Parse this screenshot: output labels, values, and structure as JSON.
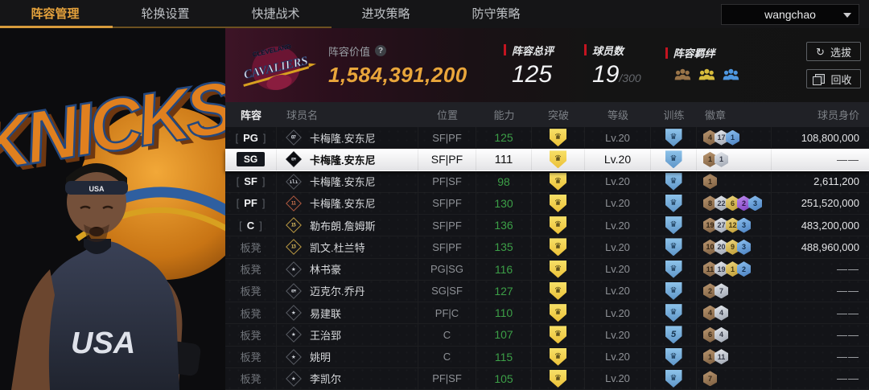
{
  "colors": {
    "accent_gold": "#e9a63b",
    "accent_red": "#c41420",
    "tab_active": "#e5a23c",
    "bond_bronze": "#9a7448",
    "bond_gold": "#d8bc3c",
    "bond_blue": "#4e97e0"
  },
  "nav": {
    "tabs": [
      "阵容管理",
      "轮换设置",
      "快捷战术",
      "进攻策略",
      "防守策略"
    ],
    "active_index": 0,
    "user": "wangchao"
  },
  "art": {
    "knicks": "KNICKS",
    "headband": "USA",
    "jersey": "USA"
  },
  "header": {
    "team": {
      "line1": "CLEVELAND",
      "line2": "CAVALIERS"
    },
    "value_label": "阵容价值",
    "value_help": "?",
    "value": "1,584,391,200",
    "stats": [
      {
        "label": "阵容总评",
        "value": "125"
      },
      {
        "label": "球员数",
        "value": "19",
        "suffix": "/300"
      },
      {
        "label": "阵容羁绊"
      }
    ],
    "bonds": [
      {
        "icon": "bond-group-bronze-icon",
        "color": "#9a7448"
      },
      {
        "icon": "bond-group-gold-icon",
        "color": "#d8bc3c"
      },
      {
        "icon": "bond-group-blue-icon",
        "color": "#4e97e0"
      }
    ],
    "buttons": [
      {
        "label": "选拔",
        "icon": "refresh-icon"
      },
      {
        "label": "回收",
        "icon": "recycle-icon"
      }
    ]
  },
  "table": {
    "columns": [
      "阵容",
      "球员名",
      "位置",
      "能力",
      "突破",
      "等级",
      "训练",
      "徽章",
      "球员身价"
    ],
    "rows": [
      {
        "slot": "PG",
        "slot_style": "bracket",
        "selected": false,
        "icon_style": "number-gray-icon",
        "icon_text": "07",
        "name": "卡梅隆.安东尼",
        "pos": "SF|PF",
        "ability": "125",
        "breakthrough": "crown",
        "level": "Lv.20",
        "training": "crown",
        "badges": [
          [
            "bronze",
            "4"
          ],
          [
            "silver",
            "17"
          ],
          [
            "blue",
            "1"
          ]
        ],
        "price": "108,800,000"
      },
      {
        "slot": "SG",
        "slot_style": "solid",
        "selected": true,
        "icon_style": "copy-icon",
        "icon_text": "COPY",
        "name": "卡梅隆.安东尼",
        "pos": "SF|PF",
        "ability": "111",
        "breakthrough": "crown",
        "level": "Lv.20",
        "training": "crown",
        "badges": [
          [
            "bronze",
            "1"
          ],
          [
            "silver",
            "1"
          ]
        ],
        "price": "——"
      },
      {
        "slot": "SF",
        "slot_style": "bracket",
        "selected": false,
        "icon_style": "bars-icon",
        "icon_text": "ılı",
        "name": "卡梅隆.安东尼",
        "pos": "PF|SF",
        "ability": "98",
        "breakthrough": "crown",
        "level": "Lv.20",
        "training": "crown",
        "badges": [
          [
            "bronze",
            "1"
          ]
        ],
        "price": "2,611,200"
      },
      {
        "slot": "PF",
        "slot_style": "bracket",
        "selected": false,
        "icon_style": "number-red-icon",
        "icon_text": "11",
        "name": "卡梅隆.安东尼",
        "pos": "SF|PF",
        "ability": "130",
        "breakthrough": "crown",
        "level": "Lv.20",
        "training": "crown",
        "badges": [
          [
            "bronze",
            "8"
          ],
          [
            "silver",
            "22"
          ],
          [
            "gold",
            "6"
          ],
          [
            "purple",
            "2"
          ],
          [
            "blue",
            "3"
          ]
        ],
        "price": "251,520,000"
      },
      {
        "slot": "C",
        "slot_style": "bracket",
        "selected": false,
        "icon_style": "number-gold-icon",
        "icon_text": "15",
        "name": "勒布朗.詹姆斯",
        "pos": "SF|PF",
        "ability": "136",
        "breakthrough": "crown",
        "level": "Lv.20",
        "training": "crown",
        "badges": [
          [
            "bronze",
            "19"
          ],
          [
            "silver",
            "27"
          ],
          [
            "gold",
            "12"
          ],
          [
            "blue",
            "3"
          ]
        ],
        "price": "483,200,000"
      },
      {
        "slot": "板凳",
        "slot_style": "bench",
        "selected": false,
        "icon_style": "number-gold-icon",
        "icon_text": "13",
        "name": "凯文.杜兰特",
        "pos": "SF|PF",
        "ability": "135",
        "breakthrough": "crown",
        "level": "Lv.20",
        "training": "crown",
        "badges": [
          [
            "bronze",
            "10"
          ],
          [
            "silver",
            "20"
          ],
          [
            "gold",
            "9"
          ],
          [
            "blue",
            "3"
          ]
        ],
        "price": "488,960,000"
      },
      {
        "slot": "板凳",
        "slot_style": "bench",
        "selected": false,
        "icon_style": "star-icon",
        "icon_text": "★",
        "name": "林书豪",
        "pos": "PG|SG",
        "ability": "116",
        "breakthrough": "crown",
        "level": "Lv.20",
        "training": "crown",
        "badges": [
          [
            "bronze",
            "11"
          ],
          [
            "silver",
            "19"
          ],
          [
            "gold",
            "1"
          ],
          [
            "blue",
            "2"
          ]
        ],
        "price": "——"
      },
      {
        "slot": "板凳",
        "slot_style": "bench",
        "selected": false,
        "icon_style": "copy-icon",
        "icon_text": "COPY",
        "name": "迈克尔.乔丹",
        "pos": "SG|SF",
        "ability": "127",
        "breakthrough": "crown",
        "level": "Lv.20",
        "training": "crown",
        "badges": [
          [
            "bronze",
            "2"
          ],
          [
            "silver",
            "7"
          ]
        ],
        "price": "——"
      },
      {
        "slot": "板凳",
        "slot_style": "bench",
        "selected": false,
        "icon_style": "star-icon",
        "icon_text": "★",
        "name": "易建联",
        "pos": "PF|C",
        "ability": "110",
        "breakthrough": "crown",
        "level": "Lv.20",
        "training": "crown",
        "badges": [
          [
            "bronze",
            "4"
          ],
          [
            "silver",
            "4"
          ]
        ],
        "price": "——"
      },
      {
        "slot": "板凳",
        "slot_style": "bench",
        "selected": false,
        "icon_style": "star-icon",
        "icon_text": "★",
        "name": "王治郅",
        "pos": "C",
        "ability": "107",
        "breakthrough": "crown",
        "level": "Lv.20",
        "training": "5",
        "badges": [
          [
            "bronze",
            "6"
          ],
          [
            "silver",
            "4"
          ]
        ],
        "price": "——"
      },
      {
        "slot": "板凳",
        "slot_style": "bench",
        "selected": false,
        "icon_style": "star-icon",
        "icon_text": "★",
        "name": "姚明",
        "pos": "C",
        "ability": "115",
        "breakthrough": "crown",
        "level": "Lv.20",
        "training": "crown",
        "badges": [
          [
            "bronze",
            "1"
          ],
          [
            "silver",
            "11"
          ]
        ],
        "price": "——"
      },
      {
        "slot": "板凳",
        "slot_style": "bench",
        "selected": false,
        "icon_style": "star-icon",
        "icon_text": "★",
        "name": "李凯尔",
        "pos": "PF|SF",
        "ability": "105",
        "breakthrough": "crown",
        "level": "Lv.20",
        "training": "crown",
        "badges": [
          [
            "bronze",
            "7"
          ]
        ],
        "price": "——"
      }
    ]
  }
}
